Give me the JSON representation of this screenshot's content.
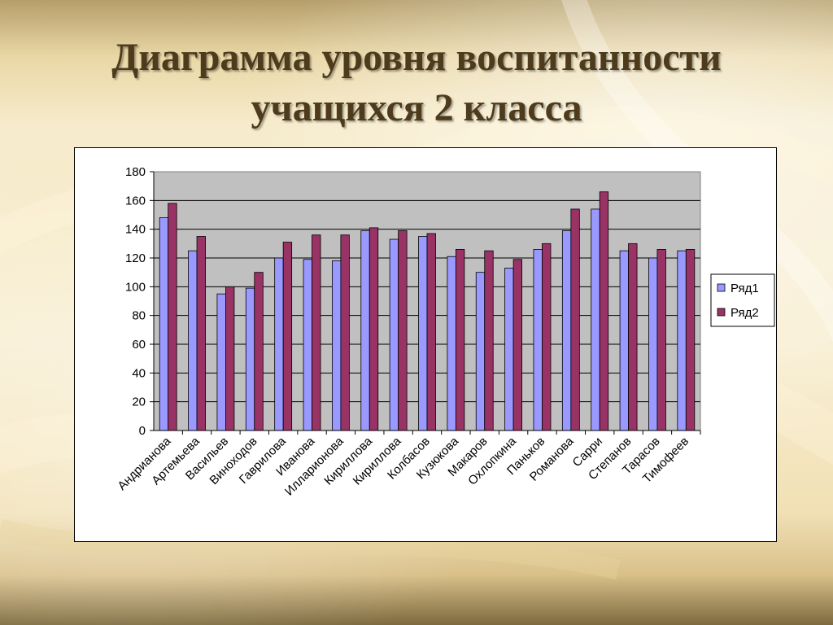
{
  "slide": {
    "title_line1": "Диаграмма уровня воспитанности",
    "title_line2": "учащихся 2 класса"
  },
  "chart_data": {
    "type": "bar",
    "title": "",
    "xlabel": "",
    "ylabel": "",
    "ylim": [
      0,
      180
    ],
    "yticks": [
      0,
      20,
      40,
      60,
      80,
      100,
      120,
      140,
      160,
      180
    ],
    "grid": true,
    "legend_position": "right",
    "plot_background": "#c0c0c0",
    "categories": [
      "Андрианова",
      "Артемьева",
      "Васильев",
      "Виноходов",
      "Гаврилова",
      "Иванова",
      "Илларионова",
      "Кириллова",
      "Кириллова",
      "Колбасов",
      "Кузюкова",
      "Макаров",
      "Охлопкина",
      "Паньков",
      "Романова",
      "Сарри",
      "Степанов",
      "Тарасов",
      "Тимофеев"
    ],
    "series": [
      {
        "name": "Ряд1",
        "color": "#9999ff",
        "values": [
          148,
          125,
          95,
          99,
          120,
          119,
          118,
          139,
          133,
          135,
          121,
          110,
          113,
          126,
          139,
          154,
          125,
          120,
          125
        ]
      },
      {
        "name": "Ряд2",
        "color": "#993366",
        "values": [
          158,
          135,
          100,
          110,
          131,
          136,
          136,
          141,
          139,
          137,
          126,
          125,
          119,
          130,
          154,
          166,
          130,
          126,
          126
        ]
      }
    ]
  }
}
